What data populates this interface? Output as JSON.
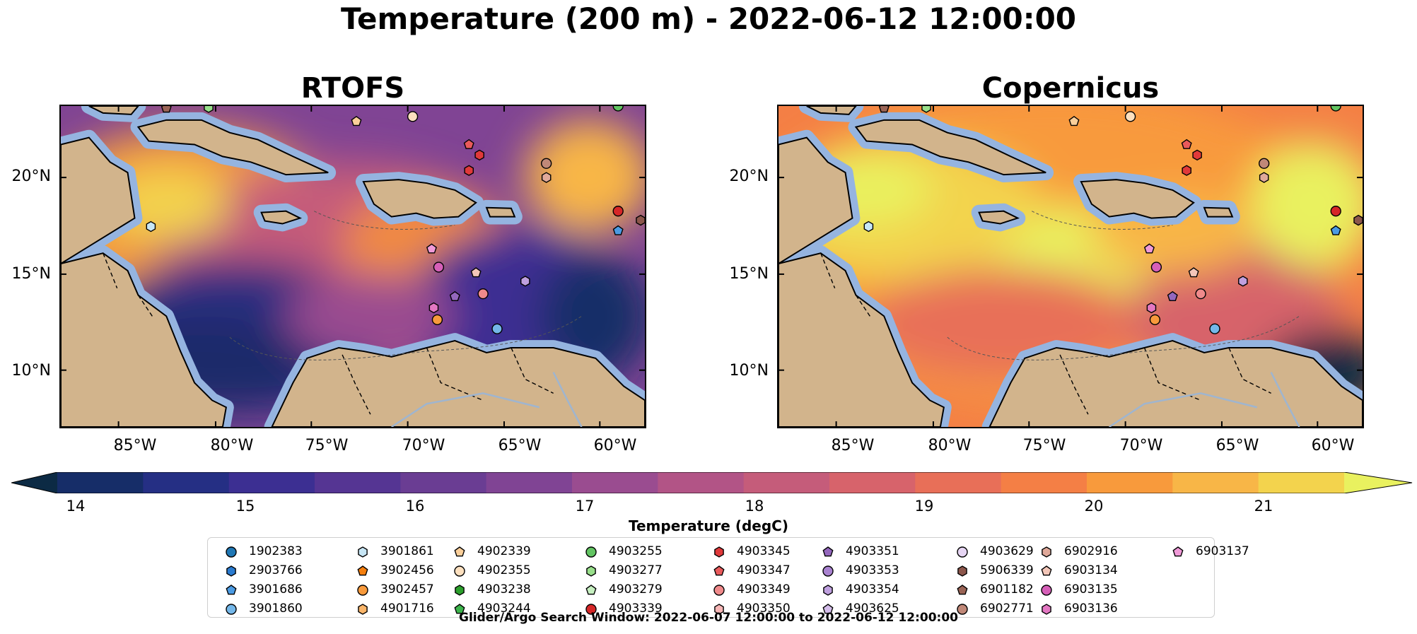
{
  "title": "Temperature (200 m) - 2022-06-12 12:00:00",
  "panels": [
    {
      "title": "RTOFS",
      "scheme": "warm-west-cool-east"
    },
    {
      "title": "Copernicus",
      "scheme": "hot"
    }
  ],
  "lat_labels": [
    "20°N",
    "15°N",
    "10°N"
  ],
  "lon_labels": [
    "85°W",
    "80°W",
    "75°W",
    "70°W",
    "65°W",
    "60°W"
  ],
  "colorbar": {
    "ticks": [
      "14",
      "15",
      "16",
      "17",
      "18",
      "19",
      "20",
      "21"
    ],
    "label": "Temperature (degC)",
    "colors": [
      "#0c2a44",
      "#162d68",
      "#252f84",
      "#3c2f92",
      "#553593",
      "#6a3d93",
      "#804494",
      "#9a4c90",
      "#b25486",
      "#c55c7a",
      "#d7636b",
      "#e86f58",
      "#f47f45",
      "#f89a3c",
      "#f8b647",
      "#f3d34d",
      "#e9f15f"
    ]
  },
  "floats": [
    {
      "id": "1902383",
      "marker": "circle",
      "color": "#1f77b4"
    },
    {
      "id": "2903766",
      "marker": "hexagon",
      "color": "#2a7bd0"
    },
    {
      "id": "3901686",
      "marker": "pentagon",
      "color": "#4b9be3"
    },
    {
      "id": "3901860",
      "marker": "circle",
      "color": "#74b7e9"
    },
    {
      "id": "3901861",
      "marker": "hexagon",
      "color": "#c7e6f5"
    },
    {
      "id": "3902456",
      "marker": "pentagon",
      "color": "#f57f0e"
    },
    {
      "id": "3902457",
      "marker": "circle",
      "color": "#f89a3c"
    },
    {
      "id": "4901716",
      "marker": "hexagon",
      "color": "#f9b56a"
    },
    {
      "id": "4902339",
      "marker": "pentagon",
      "color": "#fbcf9a"
    },
    {
      "id": "4902355",
      "marker": "circle",
      "color": "#fde0bf"
    },
    {
      "id": "4903238",
      "marker": "hexagon",
      "color": "#2ca02c"
    },
    {
      "id": "4903244",
      "marker": "pentagon",
      "color": "#3cb44b"
    },
    {
      "id": "4903255",
      "marker": "circle",
      "color": "#62c462"
    },
    {
      "id": "4903277",
      "marker": "hexagon",
      "color": "#98df8a"
    },
    {
      "id": "4903279",
      "marker": "pentagon",
      "color": "#c6efc0"
    },
    {
      "id": "4903339",
      "marker": "circle",
      "color": "#d62728"
    },
    {
      "id": "4903345",
      "marker": "hexagon",
      "color": "#e0393a"
    },
    {
      "id": "4903347",
      "marker": "pentagon",
      "color": "#e95a5b"
    },
    {
      "id": "4903349",
      "marker": "circle",
      "color": "#f08a8b"
    },
    {
      "id": "4903350",
      "marker": "hexagon",
      "color": "#f7b6b6"
    },
    {
      "id": "4903351",
      "marker": "pentagon",
      "color": "#9467bd"
    },
    {
      "id": "4903353",
      "marker": "circle",
      "color": "#a982d0"
    },
    {
      "id": "4903354",
      "marker": "hexagon",
      "color": "#bfa0df"
    },
    {
      "id": "4903625",
      "marker": "pentagon",
      "color": "#d4bdea"
    },
    {
      "id": "4903629",
      "marker": "circle",
      "color": "#e6d5f3"
    },
    {
      "id": "5906339",
      "marker": "hexagon",
      "color": "#8c564b"
    },
    {
      "id": "6901182",
      "marker": "pentagon",
      "color": "#9a6456"
    },
    {
      "id": "6902771",
      "marker": "circle",
      "color": "#c08878"
    },
    {
      "id": "6902916",
      "marker": "hexagon",
      "color": "#e0a99a"
    },
    {
      "id": "6903134",
      "marker": "pentagon",
      "color": "#f3c6b8"
    },
    {
      "id": "6903135",
      "marker": "circle",
      "color": "#d65fb8"
    },
    {
      "id": "6903136",
      "marker": "hexagon",
      "color": "#e377c2"
    },
    {
      "id": "6903137",
      "marker": "pentagon",
      "color": "#f09ad8"
    }
  ],
  "footer": "Glider/Argo Search Window: 2022-06-07 12:00:00 to 2022-06-12 12:00:00"
}
